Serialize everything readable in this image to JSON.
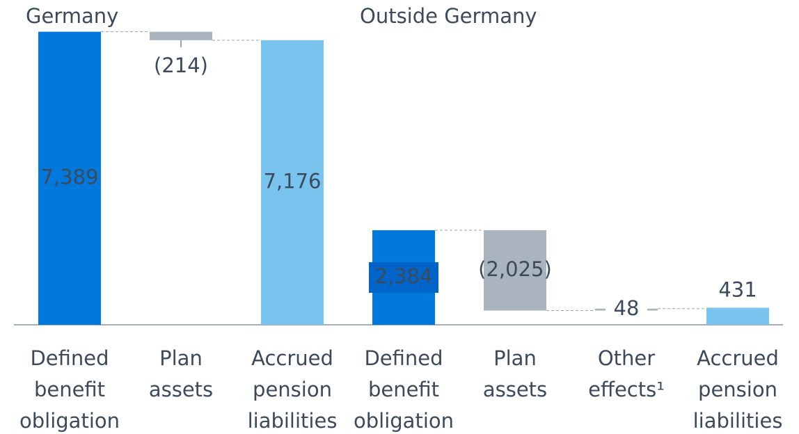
{
  "chart_data": {
    "type": "waterfall",
    "ylim": [
      0,
      7400
    ],
    "groups": [
      {
        "label": "Germany",
        "categories": [
          "Defined benefit obligation",
          "Plan assets",
          "Accrued pension liabilities"
        ],
        "values": [
          7389,
          -214,
          7176
        ],
        "value_labels": [
          "7,389",
          "(214)",
          "7,176"
        ],
        "colors": [
          "#0078dc",
          "#a9b4bf",
          "#78c4ee"
        ]
      },
      {
        "label": "Outside Germany",
        "categories": [
          "Defined benefit obligation",
          "Plan assets",
          "Other effects¹",
          "Accrued pension liabilities"
        ],
        "values": [
          2384,
          -2025,
          48,
          431
        ],
        "value_labels": [
          "2,384",
          "(2,025)",
          "48",
          "431"
        ],
        "colors": [
          "#0078dc",
          "#a9b4bf",
          "#a9b4bf",
          "#78c4ee"
        ]
      }
    ]
  }
}
